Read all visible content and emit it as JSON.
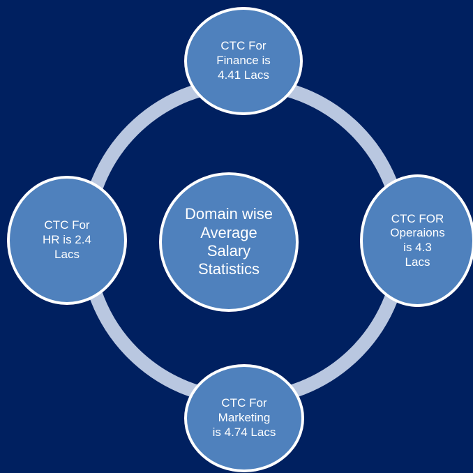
{
  "diagram": {
    "center": "Domain wise\nAverage\nSalary\nStatistics",
    "nodes": {
      "top": "CTC For\nFinance is\n4.41 Lacs",
      "right": "CTC FOR\nOperaions\nis  4.3\nLacs",
      "bottom": "CTC For\nMarketing\nis 4.74 Lacs",
      "left": "CTC For\nHR is 2.4\nLacs"
    }
  },
  "colors": {
    "background": "#002060",
    "node_fill": "#4f81bd",
    "node_border": "#ffffff",
    "ring": "#b9c7e0",
    "text": "#ffffff"
  }
}
